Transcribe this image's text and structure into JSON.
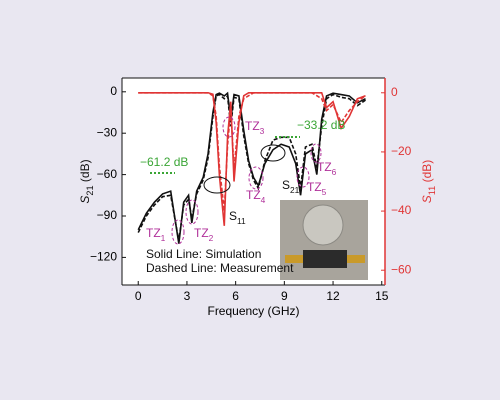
{
  "chart_data": {
    "type": "line",
    "xlabel": "Frequency (GHz)",
    "ylabel": {
      "symbol": "S",
      "sub": "21",
      "unit": " (dB)"
    },
    "y2label": {
      "symbol": "S",
      "sub": "11",
      "unit": " (dB)"
    },
    "xlim": [
      -1,
      15.2
    ],
    "xticks": [
      0,
      3,
      6,
      9,
      12,
      15
    ],
    "ylim": [
      -140,
      10
    ],
    "yticks": [
      {
        "value": -120,
        "label": "−120"
      },
      {
        "value": -90,
        "label": "−90"
      },
      {
        "value": -60,
        "label": "−60"
      },
      {
        "value": -30,
        "label": "−30"
      },
      0
    ],
    "y2lim": [
      -65,
      5
    ],
    "y2ticks": [
      {
        "value": -60,
        "label": "−60"
      },
      {
        "value": -40,
        "label": "−40"
      },
      {
        "value": -20,
        "label": "−20"
      },
      0
    ],
    "y2color": "#e03535",
    "x": [
      0,
      0.5,
      1,
      1.5,
      2,
      2.5,
      2.8,
      3.1,
      3.3,
      3.6,
      4,
      4.3,
      4.6,
      4.8,
      5,
      5.3,
      5.5,
      5.7,
      5.9,
      6.2,
      6.5,
      6.8,
      7.1,
      7.4,
      7.8,
      8.3,
      8.8,
      9.3,
      9.7,
      10,
      10.3,
      10.7,
      11,
      11.3,
      11.6,
      12,
      12.5,
      13,
      13.5,
      14
    ],
    "series": [
      {
        "color": "#111111",
        "dash": false,
        "axis": "y",
        "values": [
          -100,
          -88,
          -80,
          -74,
          -72,
          -110,
          -80,
          -75,
          -95,
          -72,
          -62,
          -45,
          -15,
          -2,
          -1,
          -3,
          -1,
          -20,
          -2,
          -3,
          -28,
          -50,
          -62,
          -68,
          -52,
          -42,
          -38,
          -40,
          -52,
          -75,
          -45,
          -42,
          -60,
          -20,
          -3,
          -1,
          -2,
          -3,
          -8,
          -5
        ]
      },
      {
        "color": "#111111",
        "dash": true,
        "axis": "y",
        "values": [
          -102,
          -90,
          -82,
          -76,
          -75,
          -108,
          -82,
          -78,
          -92,
          -74,
          -64,
          -48,
          -18,
          -3,
          -2,
          -5,
          -3,
          -25,
          -4,
          -5,
          -32,
          -52,
          -64,
          -70,
          -50,
          -35,
          -33,
          -33,
          -45,
          -70,
          -40,
          -38,
          -55,
          -25,
          -5,
          -2,
          -4,
          -5,
          -10,
          -6
        ]
      },
      {
        "color": "#e03535",
        "dash": false,
        "axis": "y2",
        "values": [
          0,
          0,
          0,
          0,
          0,
          0,
          0,
          0,
          0,
          0,
          0,
          0,
          -0.5,
          -10,
          -28,
          -45,
          -15,
          -3,
          -30,
          -10,
          -1,
          0,
          0,
          0,
          0,
          0,
          0,
          0,
          0,
          0,
          0,
          0,
          0,
          0,
          -5,
          -3,
          -12,
          -8,
          -2,
          -1
        ]
      },
      {
        "color": "#e03535",
        "dash": true,
        "axis": "y2",
        "values": [
          0,
          0,
          0,
          0,
          0,
          0,
          0,
          0,
          0,
          0,
          0,
          0,
          -1,
          -8,
          -25,
          -40,
          -18,
          -5,
          -26,
          -8,
          -2,
          -1,
          0,
          0,
          0,
          0,
          0,
          0,
          0,
          0,
          0,
          0,
          -1,
          -2,
          -6,
          -4,
          -10,
          -6,
          -3,
          -1
        ]
      }
    ],
    "annotations": [
      {
        "text": "−61.2 dB",
        "color": "#3aa535"
      },
      {
        "text": "−33.2 dB",
        "color": "#3aa535"
      },
      {
        "text": "TZ",
        "sub": "1",
        "color": "#b0309a"
      },
      {
        "text": "TZ",
        "sub": "2",
        "color": "#b0309a"
      },
      {
        "text": "TZ",
        "sub": "3",
        "color": "#b0309a"
      },
      {
        "text": "TZ",
        "sub": "4",
        "color": "#b0309a"
      },
      {
        "text": "TZ",
        "sub": "5",
        "color": "#b0309a"
      },
      {
        "text": "TZ",
        "sub": "6",
        "color": "#b0309a"
      },
      {
        "text": "S",
        "sub": "11",
        "color": "#111111"
      },
      {
        "text": "S",
        "sub": "21",
        "color": "#111111"
      },
      {
        "text": "Solid Line: Simulation",
        "color": "#111111"
      },
      {
        "text": "Dashed Line: Measurement",
        "color": "#111111"
      }
    ]
  }
}
